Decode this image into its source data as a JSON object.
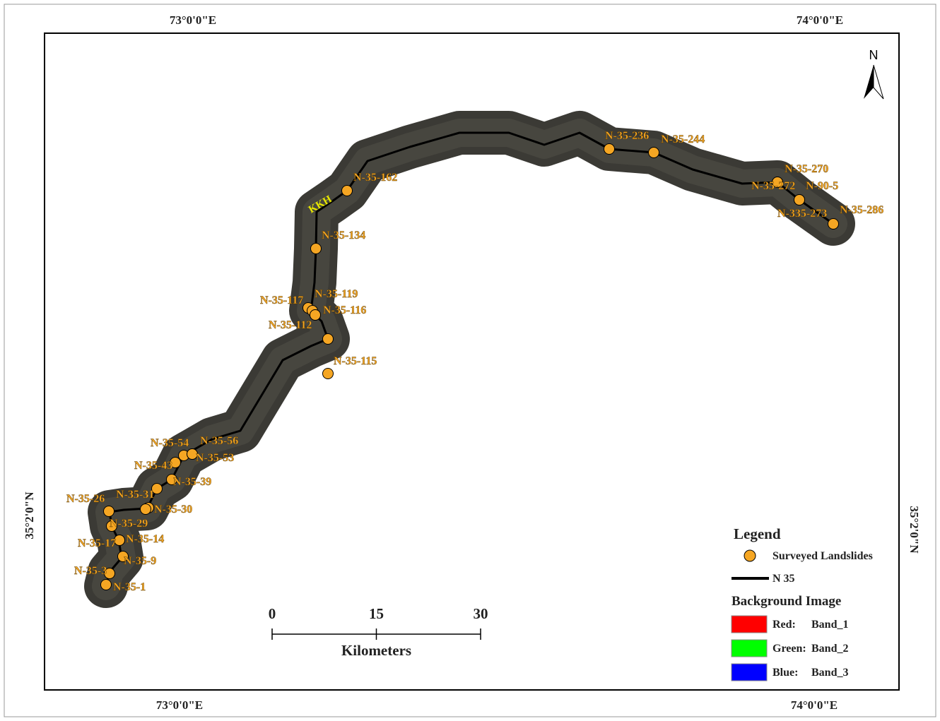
{
  "map": {
    "graticule": {
      "top": [
        "73°0'0\"E",
        "74°0'0\"E"
      ],
      "bottom": [
        "73°0'0\"E",
        "74°0'0\"E"
      ],
      "left": "35°2'0\"N",
      "right": "35°2'0\"N"
    },
    "north": "N",
    "road_label": "KKH",
    "landslides": [
      "N-35-236",
      "N-35-244",
      "N-35-162",
      "N-35-270",
      "N-35-272",
      "N-90-5",
      "N-335-273",
      "N-35-286",
      "N-35-134",
      "N-35-117",
      "N-35-119",
      "N-35-116",
      "N-35-112",
      "N-35-115",
      "N-35-54",
      "N-35-56",
      "N-35-53",
      "N-35-43",
      "N-35-39",
      "N-35-26",
      "N-35-31",
      "N-35-30",
      "N-35-29",
      "N-35-17",
      "N-35-14",
      "N-35-9",
      "N-35-3",
      "N-35-1"
    ],
    "scale_bar": {
      "ticks": [
        0,
        15,
        30
      ],
      "unit": "Kilometers"
    },
    "legend": {
      "title": "Legend",
      "landslide_item": "Surveyed Landslides",
      "road_item": "N 35",
      "background_title": "Background Image",
      "bands": [
        {
          "channel": "Red:",
          "band": "Band_1",
          "color": "#ff0000"
        },
        {
          "channel": "Green:",
          "band": "Band_2",
          "color": "#00ff00"
        },
        {
          "channel": "Blue:",
          "band": "Band_3",
          "color": "#0000ff"
        }
      ]
    }
  }
}
